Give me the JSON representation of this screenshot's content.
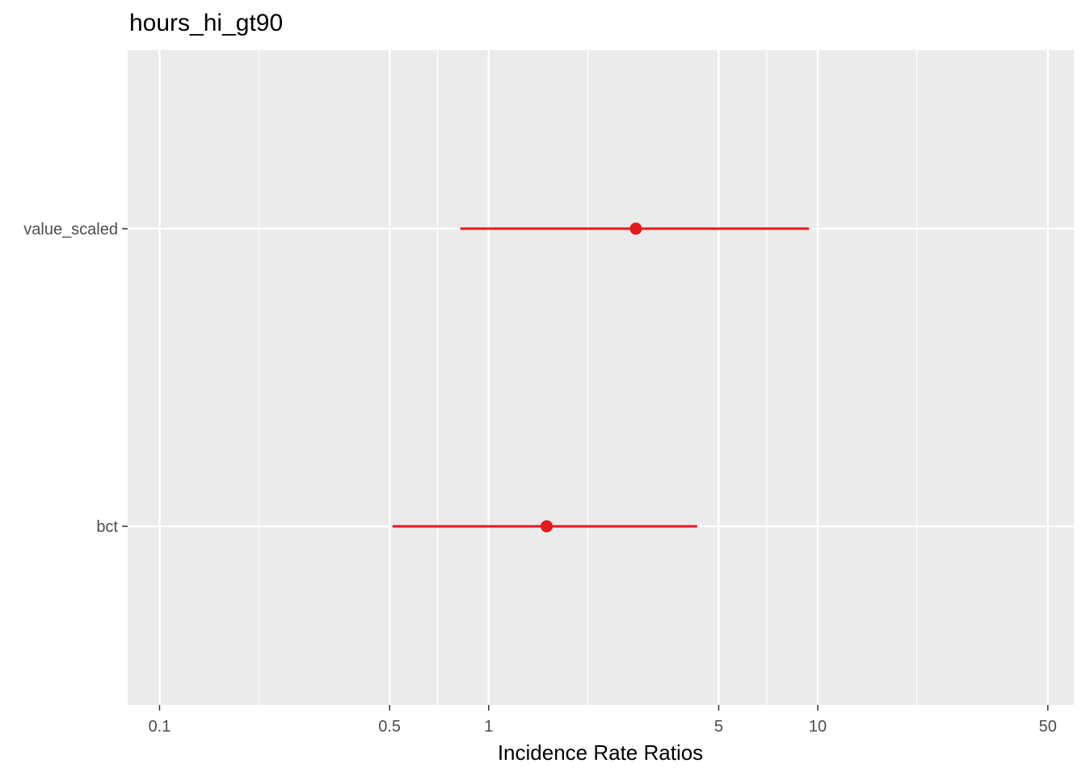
{
  "chart_data": {
    "type": "forest",
    "title": "hours_hi_gt90",
    "xlabel": "Incidence Rate Ratios",
    "ylabel": "",
    "x_scale": "log10",
    "xlim": [
      0.08,
      60
    ],
    "x_ticks": [
      {
        "value": 0.1,
        "label": "0.1"
      },
      {
        "value": 0.5,
        "label": "0.5"
      },
      {
        "value": 1,
        "label": "1"
      },
      {
        "value": 5,
        "label": "5"
      },
      {
        "value": 10,
        "label": "10"
      },
      {
        "value": 50,
        "label": "50"
      }
    ],
    "x_minor_gridlines": [
      0.2,
      0.7,
      2,
      7,
      20
    ],
    "categories": [
      "value_scaled",
      "bct"
    ],
    "estimates": [
      {
        "term": "value_scaled",
        "estimate": 2.8,
        "conf_low": 0.82,
        "conf_high": 9.4
      },
      {
        "term": "bct",
        "estimate": 1.5,
        "conf_low": 0.51,
        "conf_high": 4.3
      }
    ],
    "point_color": "#e41a1c",
    "panel_background": "#ebebeb",
    "grid": true,
    "legend": "none"
  }
}
